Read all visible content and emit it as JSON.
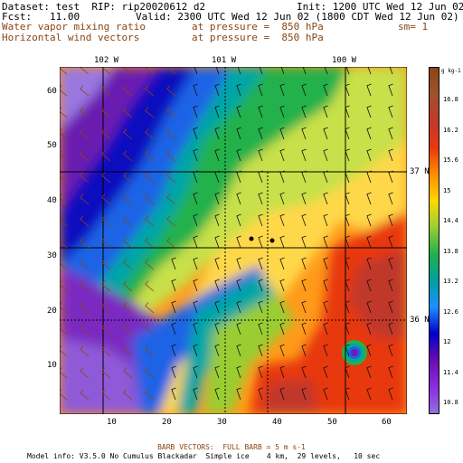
{
  "header": {
    "dataset": "Dataset: test  RIP: rip20020612 d2",
    "init": "Init: 1200 UTC Wed 12 Jun 02",
    "fcst": "Fcst:   11.00",
    "valid": "Valid: 2300 UTC Wed 12 Jun 02 (1800 CDT Wed 12 Jun 02)",
    "field1": "Water vapor mixing ratio",
    "field1_level": "at pressure =  850 hPa",
    "field1_sm": "sm= 1",
    "field2": "Horizontal wind vectors",
    "field2_level": "at pressure =  850 hPa"
  },
  "map": {
    "lon_labels": [
      "102 W",
      "101 W",
      "100 W"
    ],
    "lat_labels": [
      "37 N",
      "36 N"
    ],
    "x_ticks": [
      "10",
      "20",
      "30",
      "40",
      "50",
      "60"
    ],
    "y_ticks": [
      "10",
      "20",
      "30",
      "40",
      "50",
      "60"
    ]
  },
  "colorbar": {
    "unit": "g kg-1",
    "labels": [
      "16.8",
      "16.2",
      "15.6",
      "15",
      "14.4",
      "13.8",
      "13.2",
      "12.6",
      "12",
      "11.4",
      "10.8"
    ],
    "colors": [
      "#8b4513",
      "#a0522d",
      "#c0392b",
      "#e8390e",
      "#ff8c00",
      "#ffd700",
      "#9acd32",
      "#22b14c",
      "#00a0a0",
      "#1e90ff",
      "#0000cd",
      "#6a0dad",
      "#8a2be2",
      "#9370db"
    ]
  },
  "footer": {
    "barbs": "BARB VECTORS:  FULL BARB = 5 m s-1",
    "model": "Model info: V3.5.0 No Cumulus Blackadar  Simple ice    4 km,  29 levels,   10 sec"
  }
}
